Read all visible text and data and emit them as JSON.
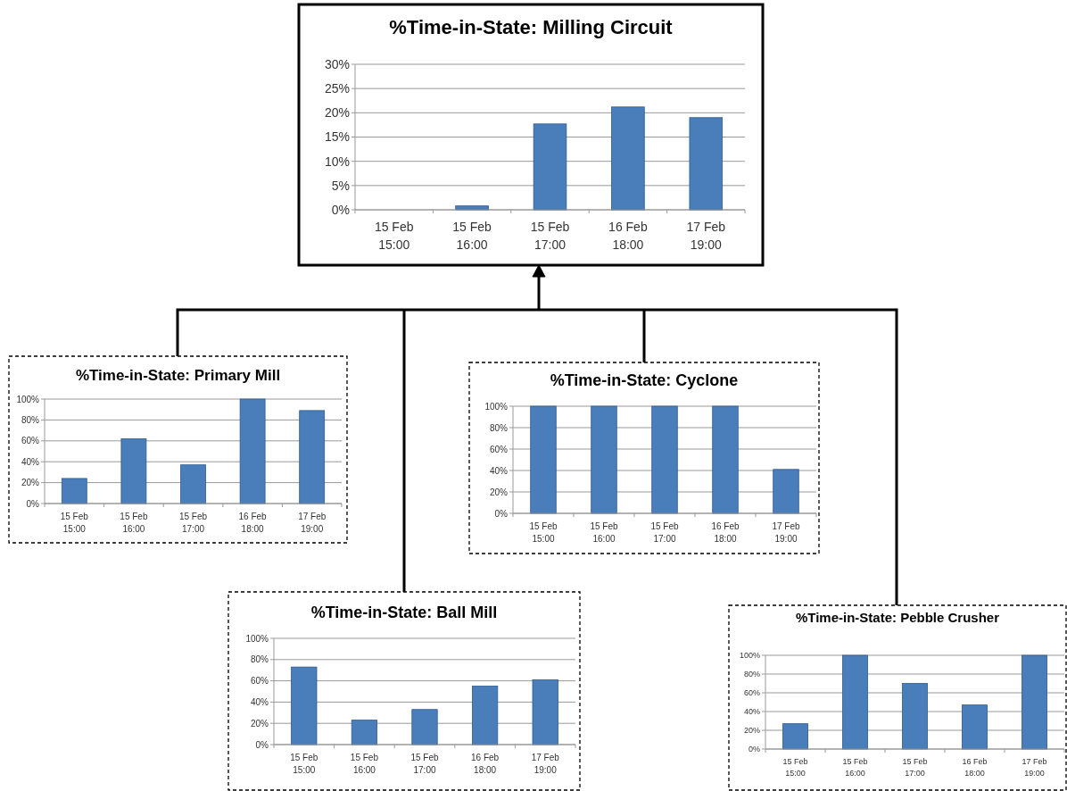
{
  "chart_data": [
    {
      "type": "bar",
      "title": "%Time-in-State:  Milling Circuit",
      "categories": [
        "15 Feb\n15:00",
        "15 Feb\n16:00",
        "15 Feb\n17:00",
        "16 Feb\n18:00",
        "17 Feb\n19:00"
      ],
      "values": [
        0,
        0.8,
        17.7,
        21.2,
        19
      ],
      "color": "#4a7ebb",
      "ylim": [
        0,
        30
      ],
      "yticks": [
        {
          "value": 0,
          "label": "0%"
        },
        {
          "value": 5,
          "label": "5%"
        },
        {
          "value": 10,
          "label": "10%"
        },
        {
          "value": 15,
          "label": "15%"
        },
        {
          "value": 20,
          "label": "20%"
        },
        {
          "value": 25,
          "label": "25%"
        },
        {
          "value": 30,
          "label": "30%"
        }
      ],
      "grid": "y"
    },
    {
      "type": "bar",
      "title": "%Time-in-State: Primary Mill",
      "categories": [
        "15 Feb\n15:00",
        "15 Feb\n16:00",
        "15 Feb\n17:00",
        "16 Feb\n18:00",
        "17 Feb\n19:00"
      ],
      "values": [
        24,
        62,
        37,
        100,
        89
      ],
      "color": "#4a7ebb",
      "ylim": [
        0,
        100
      ],
      "yticks": [
        {
          "value": 0,
          "label": "0%"
        },
        {
          "value": 20,
          "label": "20%"
        },
        {
          "value": 40,
          "label": "40%"
        },
        {
          "value": 60,
          "label": "60%"
        },
        {
          "value": 80,
          "label": "80%"
        },
        {
          "value": 100,
          "label": "100%"
        }
      ],
      "grid": "y"
    },
    {
      "type": "bar",
      "title": "%Time-in-State: Cyclone",
      "categories": [
        "15 Feb\n15:00",
        "15 Feb\n16:00",
        "15 Feb\n17:00",
        "16 Feb\n18:00",
        "17 Feb\n19:00"
      ],
      "values": [
        100,
        100,
        100,
        100,
        41
      ],
      "color": "#4a7ebb",
      "ylim": [
        0,
        100
      ],
      "yticks": [
        {
          "value": 0,
          "label": "0%"
        },
        {
          "value": 20,
          "label": "20%"
        },
        {
          "value": 40,
          "label": "40%"
        },
        {
          "value": 60,
          "label": "60%"
        },
        {
          "value": 80,
          "label": "80%"
        },
        {
          "value": 100,
          "label": "100%"
        }
      ],
      "grid": "y"
    },
    {
      "type": "bar",
      "title": "%Time-in-State: Ball Mill",
      "categories": [
        "15 Feb\n15:00",
        "15 Feb\n16:00",
        "15 Feb\n17:00",
        "16 Feb\n18:00",
        "17 Feb\n19:00"
      ],
      "values": [
        73,
        23,
        33,
        55,
        61
      ],
      "color": "#4a7ebb",
      "ylim": [
        0,
        100
      ],
      "yticks": [
        {
          "value": 0,
          "label": "0%"
        },
        {
          "value": 20,
          "label": "20%"
        },
        {
          "value": 40,
          "label": "40%"
        },
        {
          "value": 60,
          "label": "60%"
        },
        {
          "value": 80,
          "label": "80%"
        },
        {
          "value": 100,
          "label": "100%"
        }
      ],
      "grid": "y"
    },
    {
      "type": "bar",
      "title": "%Time-in-State: Pebble Crusher",
      "categories": [
        "15 Feb\n15:00",
        "15 Feb\n16:00",
        "15 Feb\n17:00",
        "16 Feb\n18:00",
        "17 Feb\n19:00"
      ],
      "values": [
        27,
        100,
        70,
        47,
        100
      ],
      "color": "#4a7ebb",
      "ylim": [
        0,
        100
      ],
      "yticks": [
        {
          "value": 0,
          "label": "0%"
        },
        {
          "value": 20,
          "label": "20%"
        },
        {
          "value": 40,
          "label": "40%"
        },
        {
          "value": 60,
          "label": "60%"
        },
        {
          "value": 80,
          "label": "80%"
        },
        {
          "value": 100,
          "label": "100%"
        }
      ],
      "grid": "y"
    }
  ]
}
